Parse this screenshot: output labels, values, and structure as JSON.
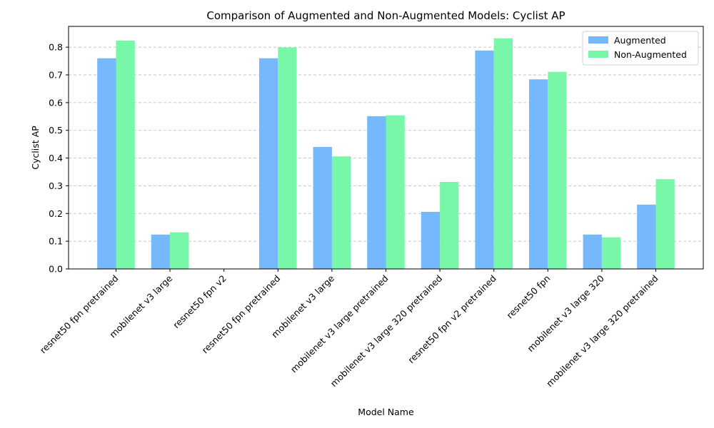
{
  "chart_data": {
    "type": "bar",
    "title": "Comparison of Augmented and Non-Augmented Models: Cyclist AP",
    "xlabel": "Model Name",
    "ylabel": "Cyclist AP",
    "ylim": [
      0,
      0.875
    ],
    "yticks": [
      "0.0",
      "0.1",
      "0.2",
      "0.3",
      "0.4",
      "0.5",
      "0.6",
      "0.7",
      "0.8"
    ],
    "grid": "y-dashed",
    "legend_position": "top-right",
    "categories": [
      "resnet50 fpn pretrained",
      "mobilenet v3 large",
      "resnet50 fpn v2",
      "resnet50 fpn pretrained",
      "mobilenet v3 large",
      "mobilenet v3 large pretrained",
      "mobilenet v3 large 320 pretrained",
      "resnet50 fpn v2 pretrained",
      "resnet50 fpn",
      "mobilenet v3 large 320",
      "mobilenet v3 large 320 pretrained"
    ],
    "series": [
      {
        "name": "Augmented",
        "color": "#76b8fc",
        "values": [
          0.76,
          0.124,
          0.0,
          0.76,
          0.44,
          0.551,
          0.206,
          0.788,
          0.684,
          0.124,
          0.232
        ]
      },
      {
        "name": "Non-Augmented",
        "color": "#78f7a8",
        "values": [
          0.824,
          0.132,
          0.0,
          0.799,
          0.406,
          0.554,
          0.314,
          0.832,
          0.711,
          0.114,
          0.324
        ]
      }
    ]
  }
}
